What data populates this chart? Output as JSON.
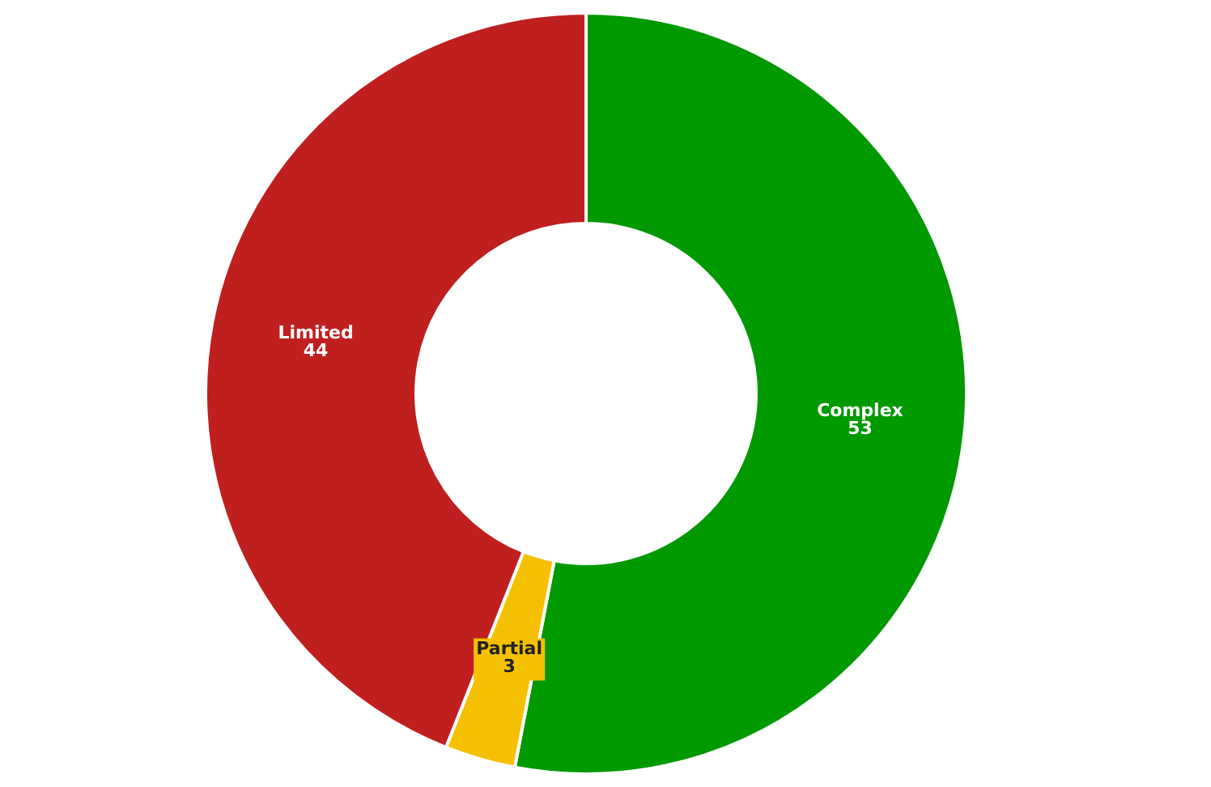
{
  "chart_data": {
    "type": "donut",
    "categories": [
      "Complex",
      "Partial",
      "Limited"
    ],
    "values": [
      53,
      3,
      44
    ],
    "colors": [
      "#009900",
      "#f5c000",
      "#c01f1f"
    ],
    "data_labels": true
  }
}
